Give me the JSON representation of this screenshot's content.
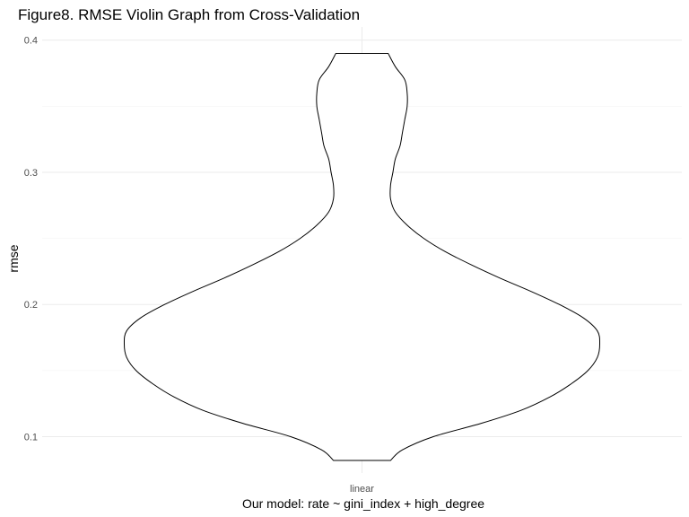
{
  "chart_data": {
    "type": "violin",
    "title": "Figure8. RMSE Violin Graph from Cross-Validation",
    "xlabel": "Our model: rate ~ gini_index + high_degree",
    "ylabel": "rmse",
    "categories": [
      "linear"
    ],
    "ylim": [
      0.0725,
      0.41
    ],
    "yticks": [
      0.1,
      0.2,
      0.3,
      0.4
    ],
    "ytick_labels": [
      "0.1",
      "0.2",
      "0.3",
      "0.4"
    ],
    "grid": true,
    "series": [
      {
        "category": "linear",
        "min": 0.082,
        "max": 0.39,
        "density_profile": [
          [
            0.082,
            0.12
          ],
          [
            0.09,
            0.17
          ],
          [
            0.1,
            0.3
          ],
          [
            0.11,
            0.5
          ],
          [
            0.12,
            0.67
          ],
          [
            0.13,
            0.79
          ],
          [
            0.14,
            0.88
          ],
          [
            0.15,
            0.95
          ],
          [
            0.16,
            0.99
          ],
          [
            0.17,
            1.0
          ],
          [
            0.18,
            0.99
          ],
          [
            0.19,
            0.93
          ],
          [
            0.2,
            0.83
          ],
          [
            0.21,
            0.71
          ],
          [
            0.22,
            0.58
          ],
          [
            0.23,
            0.46
          ],
          [
            0.24,
            0.35
          ],
          [
            0.25,
            0.26
          ],
          [
            0.26,
            0.19
          ],
          [
            0.27,
            0.14
          ],
          [
            0.28,
            0.12
          ],
          [
            0.29,
            0.12
          ],
          [
            0.3,
            0.13
          ],
          [
            0.31,
            0.14
          ],
          [
            0.32,
            0.16
          ],
          [
            0.33,
            0.17
          ],
          [
            0.34,
            0.18
          ],
          [
            0.35,
            0.19
          ],
          [
            0.36,
            0.19
          ],
          [
            0.37,
            0.18
          ],
          [
            0.38,
            0.14
          ],
          [
            0.39,
            0.11
          ]
        ]
      }
    ]
  }
}
